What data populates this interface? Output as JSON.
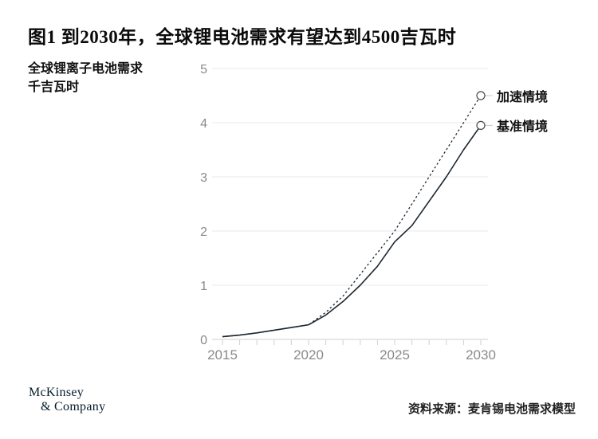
{
  "chart_data": {
    "type": "line",
    "title": "图1 到2030年，全球锂电池需求有望达到4500吉瓦时",
    "ylabel": "全球锂离子电池需求",
    "ylabel_unit": "千吉瓦时",
    "x": [
      2015,
      2016,
      2017,
      2018,
      2019,
      2020,
      2021,
      2022,
      2023,
      2024,
      2025,
      2026,
      2027,
      2028,
      2029,
      2030
    ],
    "xticks": [
      2015,
      2020,
      2025,
      2030
    ],
    "yticks": [
      0,
      1,
      2,
      3,
      4,
      5
    ],
    "ylim": [
      0,
      5
    ],
    "xlim": [
      2015,
      2030
    ],
    "grid": true,
    "legend_position": "right-of-line-end",
    "series": [
      {
        "name": "加速情境",
        "line_style": "dashed",
        "marker": "open-circle",
        "values": [
          0.05,
          0.08,
          0.12,
          0.17,
          0.22,
          0.27,
          0.5,
          0.8,
          1.2,
          1.6,
          2.0,
          2.5,
          3.0,
          3.5,
          4.0,
          4.5
        ]
      },
      {
        "name": "基准情境",
        "line_style": "solid",
        "marker": "open-circle",
        "values": [
          0.05,
          0.08,
          0.12,
          0.17,
          0.22,
          0.27,
          0.45,
          0.7,
          1.0,
          1.35,
          1.8,
          2.1,
          2.55,
          3.0,
          3.5,
          3.95
        ]
      }
    ],
    "colors": {
      "line": "#1a2630",
      "grid": "#e8e8e8",
      "axis": "#cfcfcf",
      "axis_text": "#8a8a8a",
      "marker_stroke": "#4a4a4a",
      "connector": "#c9c9c9"
    }
  },
  "footer": {
    "logo_line1": "McKinsey",
    "logo_line2": "& Company",
    "source": "资料来源：麦肯锡电池需求模型"
  }
}
